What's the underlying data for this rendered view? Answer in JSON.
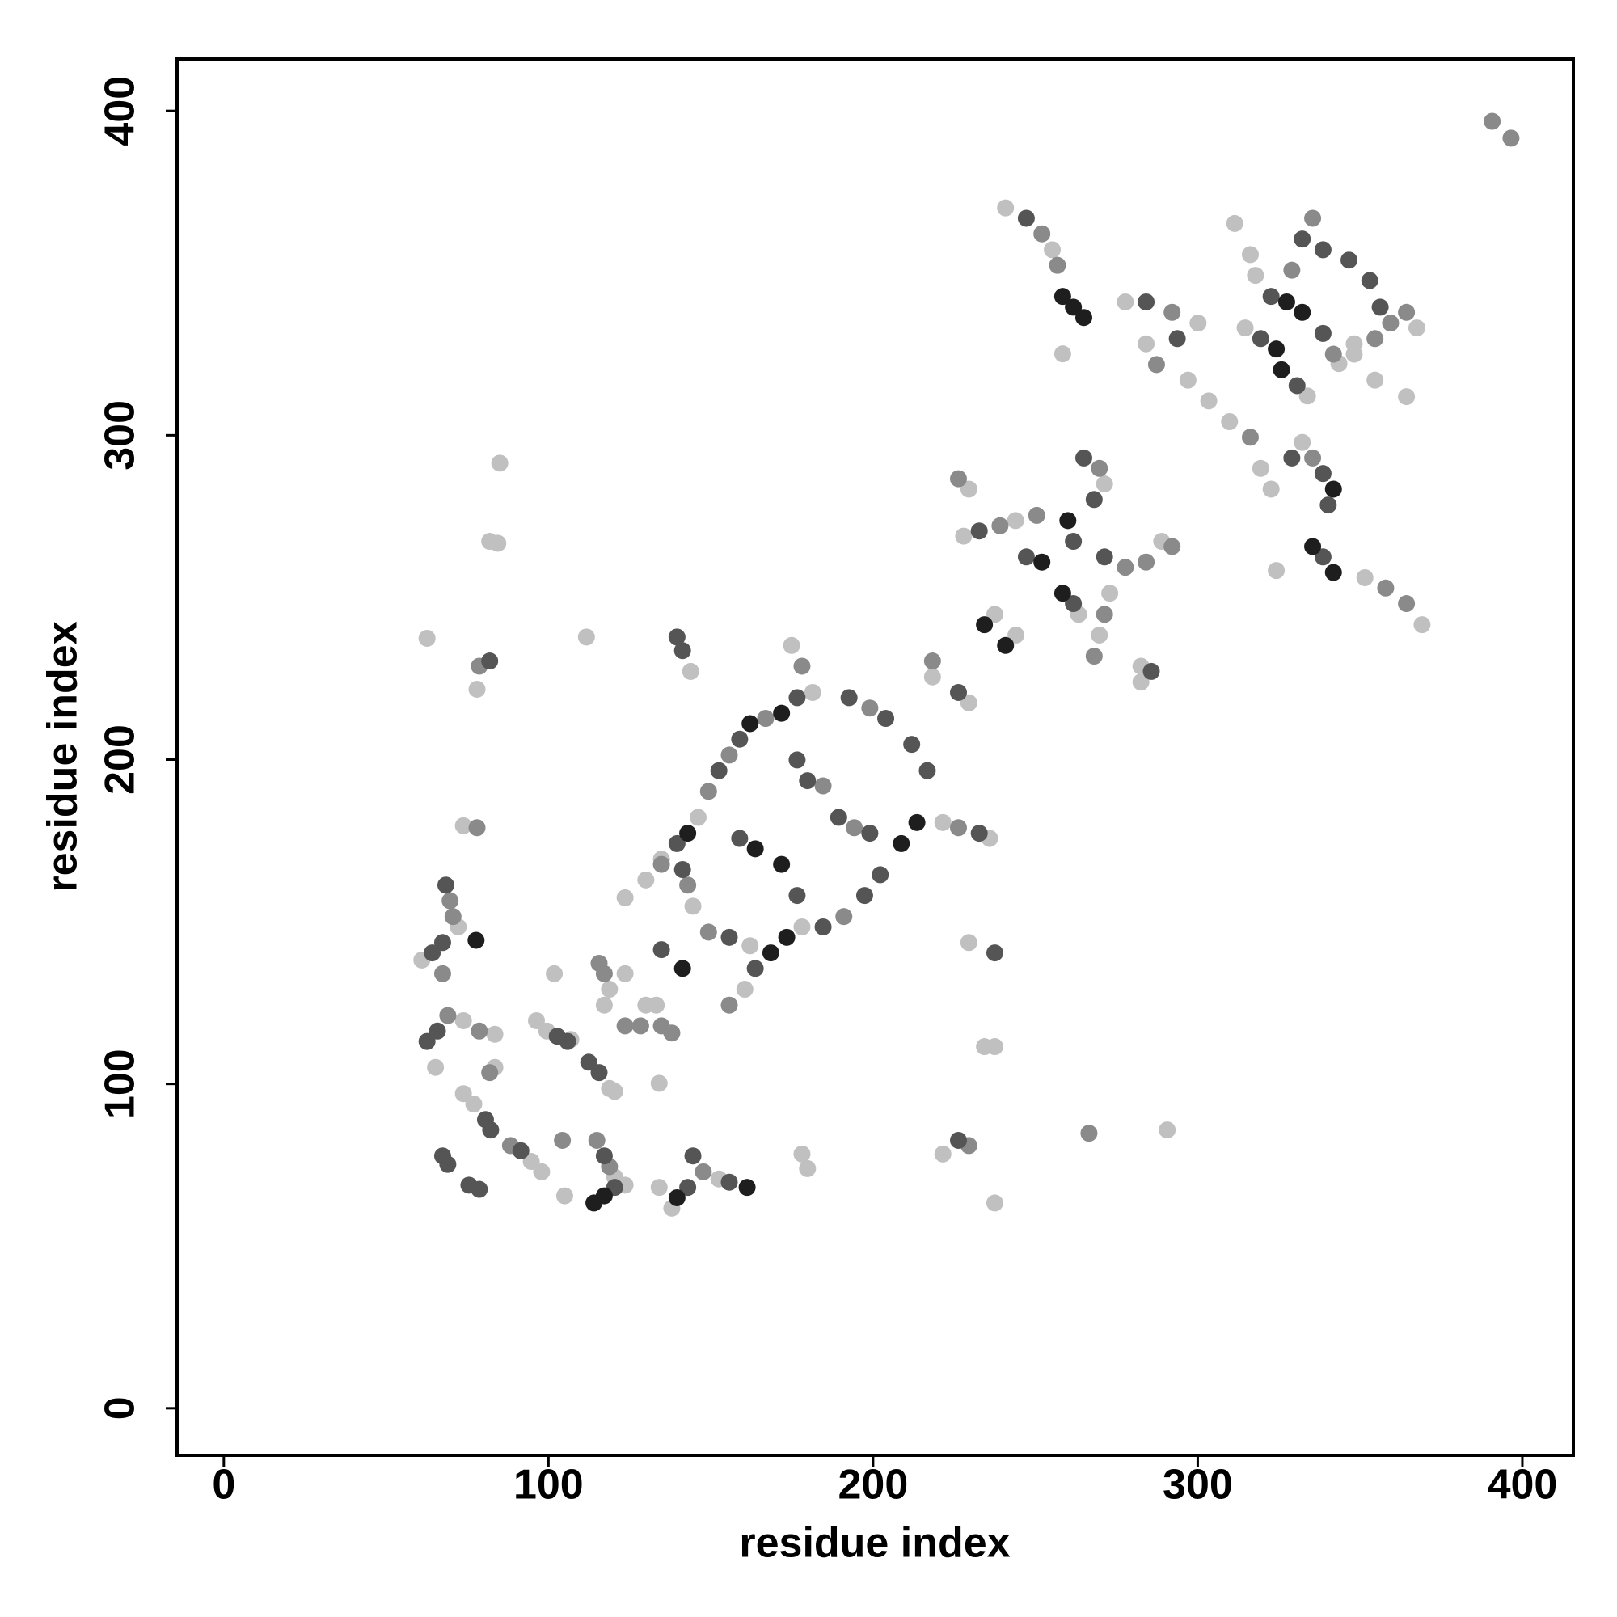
{
  "chart_data": {
    "type": "scatter",
    "xlabel": "residue index",
    "ylabel": "residue index",
    "xlim": [
      -14.4,
      415.7
    ],
    "ylim": [
      -14.5,
      416
    ],
    "xticks": [
      0,
      100,
      200,
      300,
      400
    ],
    "yticks": [
      0,
      100,
      200,
      300,
      400
    ],
    "grid": false,
    "series": [
      {
        "color": "#c0c0c0",
        "x": [
          62.6,
          85,
          81.9,
          84.4,
          78,
          111.7,
          143.8,
          73.8,
          72.2,
          61,
          73.8,
          83.5,
          65.2,
          73.8,
          77,
          83.5,
          94.7,
          97.9,
          105,
          96.3,
          99.5,
          106.9,
          118.8,
          120.4,
          101.8,
          118.8,
          117.2,
          123.6,
          130,
          133.2,
          134.1,
          120.4,
          123.6,
          134.1,
          138,
          152.5,
          123.6,
          130,
          146.1,
          181.4,
          174.9,
          178.1,
          160.5,
          162.1,
          144.5,
          134.8,
          221.5,
          235.9,
          229.5,
          234.3,
          237.5,
          237.5,
          221.5,
          178.1,
          179.8,
          290.6,
          218.3,
          229.5,
          244,
          237.5,
          229.5,
          227.9,
          243.9,
          271.3,
          288.9,
          263.3,
          272.9,
          269.7,
          282.5,
          282.5,
          240.8,
          255.2,
          258.4,
          277.7,
          300.1,
          284.1,
          297,
          303.4,
          309.8,
          319.4,
          322.6,
          332.2,
          324.2,
          351.5,
          369.1,
          311.4,
          316.2,
          317.8,
          314.6,
          333.8,
          348.2,
          367.5,
          348.2,
          354.6,
          364.3,
          343.5
        ],
        "values": [
          237.4,
          291.4,
          267.3,
          266.7,
          221.7,
          237.8,
          227.2,
          179.6,
          148.4,
          138.2,
          119.5,
          115.3,
          105.1,
          97,
          93.8,
          105.1,
          76.1,
          72.9,
          65.5,
          119.5,
          116.3,
          113.7,
          98.6,
          97.7,
          134,
          129.2,
          124.3,
          134,
          124.3,
          124.3,
          100.2,
          71.3,
          68.8,
          68.1,
          61.7,
          70.7,
          157.4,
          162.9,
          182.2,
          220.7,
          235.2,
          148.4,
          129.2,
          142.6,
          154.8,
          169.3,
          180.6,
          175.7,
          143.6,
          111.5,
          111.5,
          63.3,
          78.4,
          78.4,
          73.9,
          85.8,
          225.5,
          217.5,
          238.4,
          244.8,
          283.4,
          268.9,
          273.7,
          285,
          267.3,
          244.8,
          251.3,
          238.4,
          228.8,
          223.9,
          370.1,
          357.2,
          325.1,
          341.1,
          334.6,
          328.2,
          317,
          310.6,
          304.2,
          289.8,
          283.4,
          297.8,
          258.3,
          256.1,
          241.6,
          365.3,
          355.7,
          349.3,
          333.1,
          312.1,
          328.2,
          333.1,
          325,
          317,
          311.9,
          322.1
        ]
      },
      {
        "color": "#8a8a8a",
        "x": [
          390.7,
          396.5,
          78.7,
          78,
          69.7,
          70.6,
          67.4,
          69,
          78.7,
          81.9,
          88.3,
          104.3,
          115.6,
          117.2,
          123.6,
          128.4,
          134.8,
          138,
          114.9,
          118.8,
          147.7,
          134.8,
          149.3,
          155.7,
          166.9,
          178.1,
          199,
          191,
          155.7,
          149.3,
          142.9,
          184.6,
          194.2,
          226.3,
          229.5,
          266.5,
          218.3,
          226.3,
          239.1,
          250.4,
          269.7,
          277.7,
          284.1,
          292.1,
          271.3,
          268.1,
          252,
          256.8,
          292.1,
          287.3,
          316.2,
          335.4,
          357.9,
          364.3,
          329,
          335.4,
          341.8,
          354.6,
          359.4,
          364.3
        ],
        "values": [
          396.8,
          391.6,
          228.8,
          179,
          156.5,
          151.6,
          134,
          121.1,
          116.3,
          103.5,
          81,
          82.6,
          137.2,
          134,
          117.9,
          117.9,
          117.9,
          115.7,
          82.6,
          74.5,
          72.9,
          167.7,
          190.2,
          201.4,
          212.7,
          228.8,
          215.9,
          151.6,
          124.3,
          146.8,
          161.3,
          191.9,
          179,
          179,
          81,
          84.8,
          230.4,
          286.6,
          272.1,
          275.3,
          289.8,
          259.3,
          260.9,
          265.7,
          244.8,
          231.9,
          362.1,
          352.4,
          337.9,
          321.8,
          299.4,
          293,
          252.9,
          248.1,
          350.9,
          366.9,
          325,
          329.8,
          334.6,
          337.9
        ]
      },
      {
        "color": "#555555",
        "x": [
          139.6,
          141.3,
          81.9,
          68.4,
          67.4,
          64.2,
          62.6,
          65.8,
          80.6,
          82.2,
          67.4,
          69,
          75.5,
          78.7,
          91.5,
          102.7,
          105.9,
          112.4,
          115.6,
          134.8,
          117.2,
          120.4,
          142.9,
          144.5,
          155.7,
          139.6,
          152.5,
          158.9,
          176.6,
          192.6,
          203.9,
          211.9,
          216.7,
          202.2,
          197.4,
          184.6,
          163.7,
          155.7,
          141.3,
          158.9,
          176.6,
          176.6,
          179.8,
          189.4,
          199,
          232.7,
          237.5,
          226.3,
          226.3,
          232.7,
          264.9,
          268.1,
          261.7,
          271.3,
          247.2,
          261.7,
          285.7,
          247.2,
          284.1,
          293.7,
          329,
          338.6,
          340.2,
          338.6,
          319.4,
          330.6,
          322.6,
          332.2,
          338.6,
          346.6,
          338.6,
          353,
          356.2
        ],
        "values": [
          237.8,
          233.6,
          230.4,
          161.3,
          143.6,
          140.4,
          113.1,
          116.3,
          89,
          85.8,
          77.8,
          75.2,
          68.8,
          67.5,
          79.4,
          114.7,
          113.1,
          106.7,
          103.5,
          141.4,
          77.8,
          68.1,
          68.1,
          77.8,
          69.7,
          174.1,
          196.6,
          206.3,
          219.1,
          219.1,
          212.7,
          204.7,
          196.6,
          164.5,
          158.1,
          148.4,
          135.6,
          145.2,
          166.1,
          175.7,
          158.1,
          199.9,
          193.5,
          182.2,
          177.3,
          177.3,
          140.4,
          82.6,
          220.7,
          270.5,
          293,
          280.2,
          267.3,
          262.5,
          262.5,
          248.1,
          227.2,
          366.9,
          341.1,
          329.8,
          293,
          288.2,
          278.5,
          262.5,
          329.8,
          315.3,
          342.8,
          360.5,
          357.2,
          354,
          331.4,
          347.7,
          339.5
        ]
      },
      {
        "color": "#1e1e1e",
        "x": [
          77.7,
          141.3,
          114,
          117.2,
          139.6,
          161.2,
          142.9,
          162.1,
          171.8,
          213.5,
          208.7,
          173.4,
          168.5,
          163.7,
          171.8,
          234.3,
          240.8,
          260,
          252,
          258.4,
          258.4,
          261.7,
          264.9,
          341.8,
          335.4,
          341.8,
          324.2,
          325.8,
          327.4,
          332.2
        ],
        "values": [
          144.3,
          135.6,
          63.3,
          65.5,
          64.9,
          68.1,
          177.3,
          211.1,
          214.3,
          180.6,
          174.1,
          145.2,
          140.4,
          172.5,
          167.7,
          241.6,
          235.2,
          273.7,
          260.9,
          251.3,
          342.8,
          339.5,
          336.3,
          283.4,
          265.7,
          257.7,
          326.6,
          320.2,
          341.1,
          337.9
        ]
      }
    ]
  }
}
